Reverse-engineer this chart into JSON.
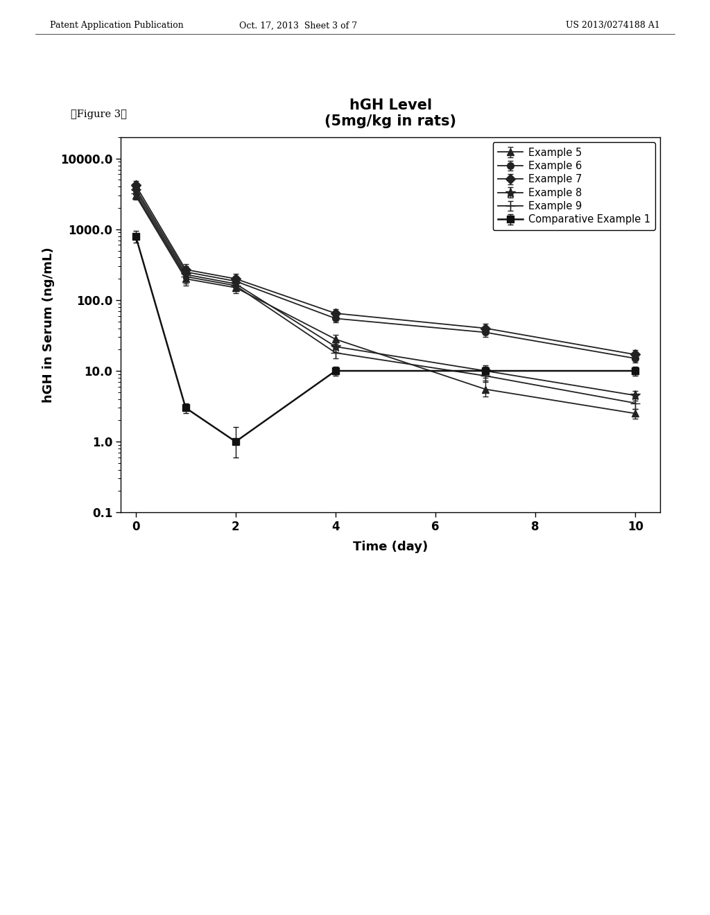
{
  "title_line1": "hGH Level",
  "title_line2": "(5mg/kg in rats)",
  "xlabel": "Time (day)",
  "ylabel": "hGH in Serum (ng/mL)",
  "figure_label": "【Figure 3】",
  "header_left": "Patent Application Publication",
  "header_mid": "Oct. 17, 2013  Sheet 3 of 7",
  "header_right": "US 2013/0274188 A1",
  "xlim": [
    -0.3,
    10.5
  ],
  "ylim_log": [
    0.1,
    20000
  ],
  "series": [
    {
      "label": "Example 5",
      "marker": "^",
      "color": "#222222",
      "linestyle": "-",
      "linewidth": 1.3,
      "markersize": 7,
      "x": [
        0,
        1,
        2,
        4,
        7,
        10
      ],
      "y": [
        3000,
        200,
        150,
        28,
        5.5,
        2.5
      ],
      "yerr_lo": [
        400,
        40,
        25,
        4,
        1.2,
        0.4
      ],
      "yerr_hi": [
        400,
        40,
        25,
        4,
        1.8,
        0.4
      ]
    },
    {
      "label": "Example 6",
      "marker": "o",
      "color": "#222222",
      "linestyle": "-",
      "linewidth": 1.3,
      "markersize": 7,
      "x": [
        0,
        1,
        2,
        4,
        7,
        10
      ],
      "y": [
        3800,
        250,
        185,
        55,
        35,
        15
      ],
      "yerr_lo": [
        500,
        50,
        30,
        7,
        5,
        2
      ],
      "yerr_hi": [
        500,
        50,
        30,
        7,
        5,
        2
      ]
    },
    {
      "label": "Example 7",
      "marker": "D",
      "color": "#222222",
      "linestyle": "-",
      "linewidth": 1.3,
      "markersize": 7,
      "x": [
        0,
        1,
        2,
        4,
        7,
        10
      ],
      "y": [
        4200,
        270,
        200,
        65,
        40,
        17
      ],
      "yerr_lo": [
        600,
        55,
        35,
        9,
        6,
        2.5
      ],
      "yerr_hi": [
        600,
        55,
        35,
        9,
        6,
        2.5
      ]
    },
    {
      "label": "Example 8",
      "marker": "*",
      "color": "#222222",
      "linestyle": "-",
      "linewidth": 1.3,
      "markersize": 10,
      "x": [
        0,
        1,
        2,
        4,
        7,
        10
      ],
      "y": [
        3500,
        230,
        170,
        22,
        10,
        4.5
      ],
      "yerr_lo": [
        450,
        45,
        28,
        3.5,
        2,
        0.7
      ],
      "yerr_hi": [
        450,
        45,
        28,
        3.5,
        2,
        0.7
      ]
    },
    {
      "label": "Example 9",
      "marker": "+",
      "color": "#222222",
      "linestyle": "-",
      "linewidth": 1.3,
      "markersize": 10,
      "x": [
        0,
        1,
        2,
        4,
        7,
        10
      ],
      "y": [
        3200,
        215,
        160,
        18,
        8.5,
        3.5
      ],
      "yerr_lo": [
        420,
        42,
        26,
        3,
        1.5,
        0.6
      ],
      "yerr_hi": [
        420,
        42,
        26,
        3,
        1.5,
        0.6
      ]
    },
    {
      "label": "Comparative Example 1",
      "marker": "s",
      "color": "#111111",
      "linestyle": "-",
      "linewidth": 1.8,
      "markersize": 7,
      "x": [
        0,
        1,
        2,
        4,
        7,
        10
      ],
      "y": [
        800,
        3.0,
        1.0,
        10.0,
        10.0,
        10.0
      ],
      "yerr_lo": [
        150,
        0.5,
        0.4,
        1.5,
        1.5,
        1.5
      ],
      "yerr_hi": [
        150,
        0.5,
        0.6,
        1.5,
        1.5,
        1.5
      ]
    }
  ],
  "background_color": "#ffffff",
  "title_fontsize": 15,
  "label_fontsize": 13,
  "tick_fontsize": 12,
  "legend_fontsize": 10.5
}
